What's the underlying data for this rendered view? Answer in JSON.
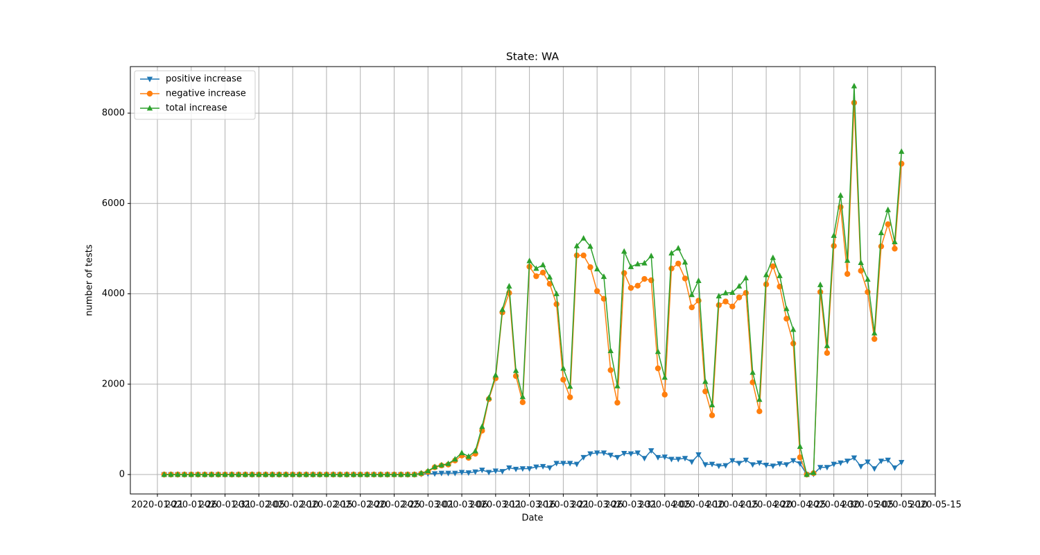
{
  "chart_data": {
    "type": "line",
    "title": "State: WA",
    "xlabel": "Date",
    "ylabel": "number of tests",
    "x": [
      "2020-01-22",
      "2020-01-23",
      "2020-01-24",
      "2020-01-25",
      "2020-01-26",
      "2020-01-27",
      "2020-01-28",
      "2020-01-29",
      "2020-01-30",
      "2020-01-31",
      "2020-02-01",
      "2020-02-02",
      "2020-02-03",
      "2020-02-04",
      "2020-02-05",
      "2020-02-06",
      "2020-02-07",
      "2020-02-08",
      "2020-02-09",
      "2020-02-10",
      "2020-02-11",
      "2020-02-12",
      "2020-02-13",
      "2020-02-14",
      "2020-02-15",
      "2020-02-16",
      "2020-02-17",
      "2020-02-18",
      "2020-02-19",
      "2020-02-20",
      "2020-02-21",
      "2020-02-22",
      "2020-02-23",
      "2020-02-24",
      "2020-02-25",
      "2020-02-26",
      "2020-02-27",
      "2020-02-28",
      "2020-02-29",
      "2020-03-01",
      "2020-03-02",
      "2020-03-03",
      "2020-03-04",
      "2020-03-05",
      "2020-03-06",
      "2020-03-07",
      "2020-03-08",
      "2020-03-09",
      "2020-03-10",
      "2020-03-11",
      "2020-03-12",
      "2020-03-13",
      "2020-03-14",
      "2020-03-15",
      "2020-03-16",
      "2020-03-17",
      "2020-03-18",
      "2020-03-19",
      "2020-03-20",
      "2020-03-21",
      "2020-03-22",
      "2020-03-23",
      "2020-03-24",
      "2020-03-25",
      "2020-03-26",
      "2020-03-27",
      "2020-03-28",
      "2020-03-29",
      "2020-03-30",
      "2020-03-31",
      "2020-04-01",
      "2020-04-02",
      "2020-04-03",
      "2020-04-04",
      "2020-04-05",
      "2020-04-06",
      "2020-04-07",
      "2020-04-08",
      "2020-04-09",
      "2020-04-10",
      "2020-04-11",
      "2020-04-12",
      "2020-04-13",
      "2020-04-14",
      "2020-04-15",
      "2020-04-16",
      "2020-04-17",
      "2020-04-18",
      "2020-04-19",
      "2020-04-20",
      "2020-04-21",
      "2020-04-22",
      "2020-04-23",
      "2020-04-24",
      "2020-04-25",
      "2020-04-26",
      "2020-04-27",
      "2020-04-28",
      "2020-04-29",
      "2020-04-30",
      "2020-05-01",
      "2020-05-02",
      "2020-05-03",
      "2020-05-04",
      "2020-05-05",
      "2020-05-06",
      "2020-05-07",
      "2020-05-08",
      "2020-05-09",
      "2020-05-10"
    ],
    "series": [
      {
        "name": "positive increase",
        "color": "#1f77b4",
        "marker": "triangle-down",
        "values": [
          0,
          0,
          0,
          0,
          0,
          0,
          0,
          0,
          0,
          0,
          0,
          0,
          0,
          0,
          0,
          0,
          0,
          0,
          0,
          0,
          0,
          0,
          0,
          0,
          0,
          0,
          0,
          0,
          0,
          0,
          0,
          0,
          0,
          0,
          0,
          0,
          0,
          0,
          10,
          20,
          20,
          30,
          30,
          30,
          50,
          40,
          60,
          100,
          50,
          80,
          70,
          150,
          120,
          130,
          130,
          170,
          180,
          150,
          250,
          250,
          250,
          230,
          380,
          460,
          480,
          480,
          430,
          380,
          470,
          460,
          480,
          360,
          530,
          380,
          390,
          340,
          340,
          360,
          280,
          440,
          220,
          230,
          190,
          200,
          310,
          250,
          320,
          220,
          260,
          210,
          190,
          240,
          220,
          310,
          240,
          0,
          10,
          160,
          160,
          230,
          260,
          300,
          370,
          180,
          280,
          130,
          300,
          320,
          150,
          270
        ]
      },
      {
        "name": "negative increase",
        "color": "#ff7f0e",
        "marker": "circle",
        "values": [
          0,
          0,
          0,
          0,
          0,
          0,
          0,
          0,
          0,
          0,
          0,
          0,
          0,
          0,
          0,
          0,
          0,
          0,
          0,
          0,
          0,
          0,
          0,
          0,
          0,
          0,
          0,
          0,
          0,
          0,
          0,
          0,
          0,
          0,
          0,
          0,
          0,
          0,
          20,
          60,
          160,
          200,
          220,
          310,
          420,
          370,
          460,
          970,
          1670,
          2130,
          3590,
          4020,
          2180,
          1600,
          4600,
          4390,
          4470,
          4220,
          3770,
          2100,
          1710,
          4850,
          4850,
          4590,
          4060,
          3890,
          2310,
          1590,
          4460,
          4130,
          4180,
          4330,
          4300,
          2350,
          1770,
          4560,
          4670,
          4340,
          3700,
          3850,
          1840,
          1310,
          3750,
          3830,
          3720,
          3920,
          4020,
          2040,
          1400,
          4210,
          4610,
          4160,
          3450,
          2900,
          380,
          0,
          30,
          4040,
          2690,
          5060,
          5920,
          4440,
          8230,
          4510,
          4040,
          3000,
          5050,
          5540,
          5000,
          6880
        ]
      },
      {
        "name": "total increase",
        "color": "#2ca02c",
        "marker": "triangle-up",
        "values": [
          0,
          0,
          0,
          0,
          0,
          0,
          0,
          0,
          0,
          0,
          0,
          0,
          0,
          0,
          0,
          0,
          0,
          0,
          0,
          0,
          0,
          0,
          0,
          0,
          0,
          0,
          0,
          0,
          0,
          0,
          0,
          0,
          0,
          0,
          0,
          0,
          0,
          0,
          30,
          80,
          170,
          210,
          240,
          340,
          480,
          400,
          520,
          1060,
          1700,
          2200,
          3650,
          4170,
          2300,
          1720,
          4730,
          4560,
          4640,
          4370,
          4000,
          2350,
          1950,
          5060,
          5230,
          5050,
          4550,
          4380,
          2740,
          1960,
          4940,
          4600,
          4660,
          4680,
          4840,
          2720,
          2150,
          4900,
          5010,
          4700,
          3980,
          4290,
          2060,
          1540,
          3950,
          4020,
          4030,
          4170,
          4350,
          2260,
          1660,
          4420,
          4800,
          4400,
          3670,
          3210,
          620,
          0,
          40,
          4200,
          2850,
          5290,
          6180,
          4740,
          8600,
          4690,
          4320,
          3130,
          5350,
          5860,
          5150,
          7150
        ]
      }
    ],
    "xlim": [
      "2020-01-17",
      "2020-05-15"
    ],
    "xticks": [
      "2020-01-21",
      "2020-01-26",
      "2020-01-31",
      "2020-02-05",
      "2020-02-10",
      "2020-02-15",
      "2020-02-20",
      "2020-02-25",
      "2020-03-01",
      "2020-03-06",
      "2020-03-11",
      "2020-03-16",
      "2020-03-21",
      "2020-03-26",
      "2020-03-31",
      "2020-04-05",
      "2020-04-10",
      "2020-04-15",
      "2020-04-20",
      "2020-04-25",
      "2020-04-30",
      "2020-05-05",
      "2020-05-10",
      "2020-05-15"
    ],
    "ylim": [
      -430,
      9030
    ],
    "yticks": [
      0,
      2000,
      4000,
      6000,
      8000
    ],
    "grid": true,
    "legend": "upper left"
  }
}
